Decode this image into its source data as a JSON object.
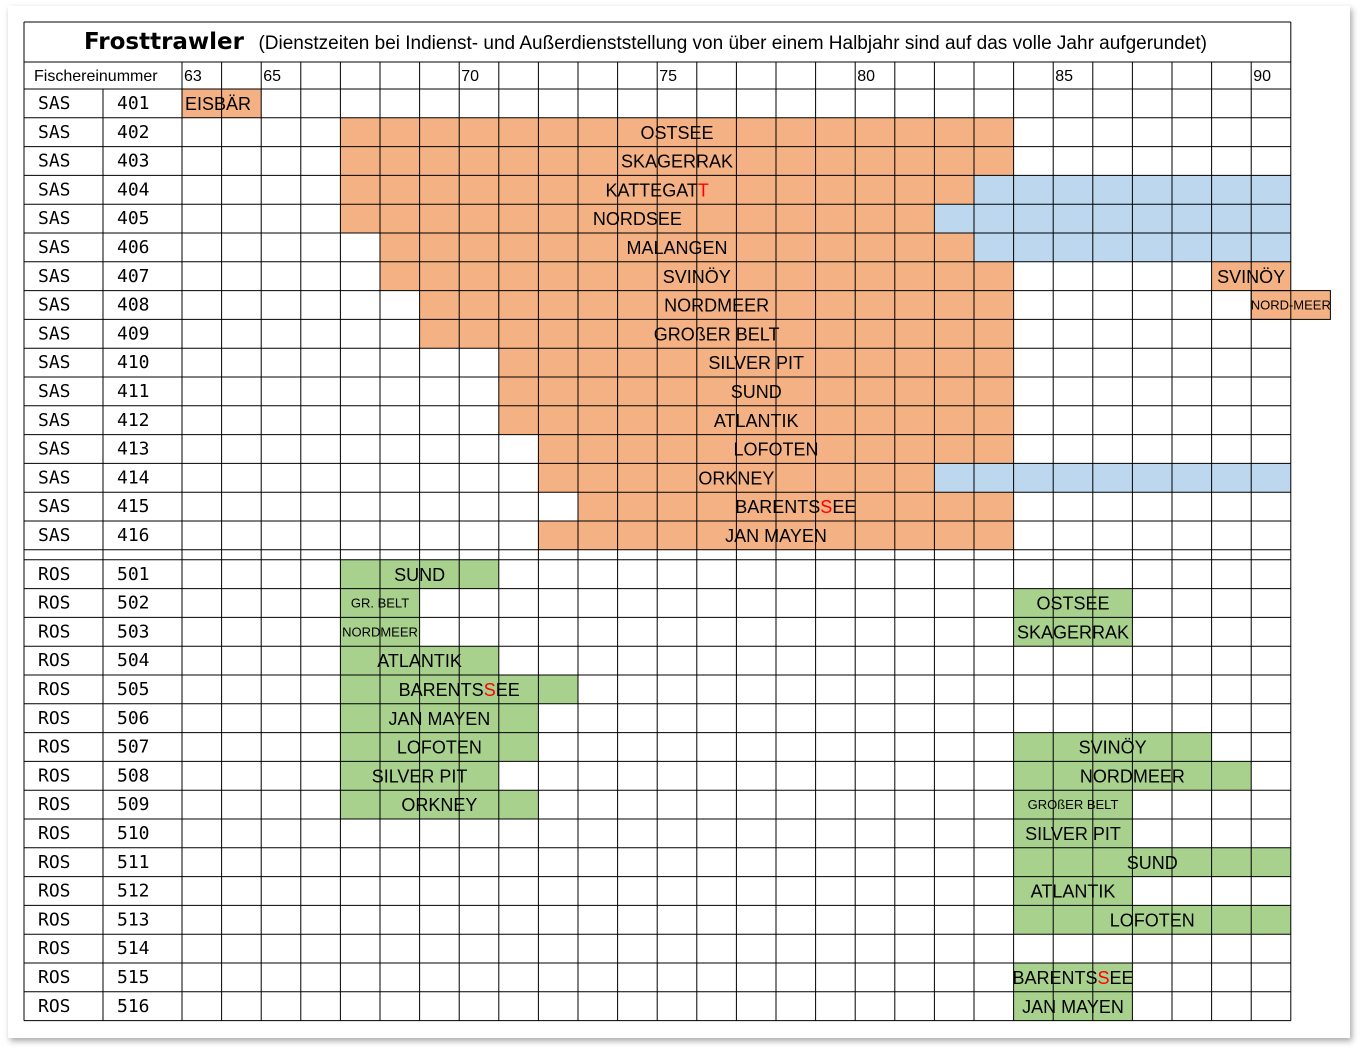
{
  "chart_data": {
    "type": "table",
    "title": "Frosttrawler",
    "subtitle": "(Dienstzeiten bei Indienst- und Außerdienststellung von über einem Halbjahr sind auf das volle Jahr aufgerundet)",
    "column_header": "Fischereinummer",
    "year_range": [
      63,
      90
    ],
    "year_labels": [
      63,
      65,
      70,
      75,
      80,
      85,
      90
    ],
    "colors": {
      "sas_service": "#F4B183",
      "ros_service": "#A9D18E",
      "blue_period": "#BDD7EE",
      "highlight_letter": "#FF0000",
      "grid": "#000000"
    },
    "groups": [
      {
        "prefix": "SAS",
        "rows": [
          {
            "number": "401",
            "bars": [
              {
                "name": "EISBÄR",
                "start": 63,
                "end": 65,
                "kind": "service",
                "align": "left"
              }
            ]
          },
          {
            "number": "402",
            "bars": [
              {
                "name": "OSTSEE",
                "start": 67,
                "end": 84,
                "kind": "service"
              }
            ]
          },
          {
            "number": "403",
            "bars": [
              {
                "name": "SKAGERRAK",
                "start": 67,
                "end": 84,
                "kind": "service"
              }
            ]
          },
          {
            "number": "404",
            "bars": [
              {
                "name": "KATTEGATT",
                "start": 67,
                "end": 83,
                "kind": "service",
                "red_index": 8
              },
              {
                "start": 83,
                "end": 91,
                "kind": "blue"
              }
            ]
          },
          {
            "number": "405",
            "bars": [
              {
                "name": "NORDSEE",
                "start": 67,
                "end": 82,
                "kind": "service"
              },
              {
                "start": 82,
                "end": 91,
                "kind": "blue"
              }
            ]
          },
          {
            "number": "406",
            "bars": [
              {
                "name": "MALANGEN",
                "start": 68,
                "end": 83,
                "kind": "service"
              },
              {
                "start": 83,
                "end": 91,
                "kind": "blue"
              }
            ]
          },
          {
            "number": "407",
            "bars": [
              {
                "name": "SVINÖY",
                "start": 68,
                "end": 84,
                "kind": "service"
              },
              {
                "name": "SVINÖY",
                "start": 89,
                "end": 91,
                "kind": "service"
              }
            ]
          },
          {
            "number": "408",
            "bars": [
              {
                "name": "NORDMEER",
                "start": 69,
                "end": 84,
                "kind": "service"
              },
              {
                "name": "NORD-MEER",
                "start": 90,
                "end": 92,
                "kind": "service",
                "small": true
              }
            ]
          },
          {
            "number": "409",
            "bars": [
              {
                "name": "GROßER BELT",
                "start": 69,
                "end": 84,
                "kind": "service"
              }
            ]
          },
          {
            "number": "410",
            "bars": [
              {
                "name": "SILVER PIT",
                "start": 71,
                "end": 84,
                "kind": "service"
              }
            ]
          },
          {
            "number": "411",
            "bars": [
              {
                "name": "SUND",
                "start": 71,
                "end": 84,
                "kind": "service"
              }
            ]
          },
          {
            "number": "412",
            "bars": [
              {
                "name": "ATLANTIK",
                "start": 71,
                "end": 84,
                "kind": "service"
              }
            ]
          },
          {
            "number": "413",
            "bars": [
              {
                "name": "LOFOTEN",
                "start": 72,
                "end": 84,
                "kind": "service"
              }
            ]
          },
          {
            "number": "414",
            "bars": [
              {
                "name": "ORKNEY",
                "start": 72,
                "end": 82,
                "kind": "service"
              },
              {
                "start": 82,
                "end": 91,
                "kind": "blue"
              }
            ]
          },
          {
            "number": "415",
            "bars": [
              {
                "name": "BARENTSSEE",
                "start": 73,
                "end": 84,
                "kind": "service",
                "red_index": 7
              }
            ]
          },
          {
            "number": "416",
            "bars": [
              {
                "name": "JAN MAYEN",
                "start": 72,
                "end": 84,
                "kind": "service"
              }
            ]
          }
        ]
      },
      {
        "prefix": "ROS",
        "rows": [
          {
            "number": "501",
            "bars": [
              {
                "name": "SUND",
                "start": 67,
                "end": 71,
                "kind": "service"
              }
            ]
          },
          {
            "number": "502",
            "bars": [
              {
                "name": "GR. BELT",
                "start": 67,
                "end": 69,
                "kind": "service",
                "small": true
              },
              {
                "name": "OSTSEE",
                "start": 84,
                "end": 87,
                "kind": "service"
              }
            ]
          },
          {
            "number": "503",
            "bars": [
              {
                "name": "NORDMEER",
                "start": 67,
                "end": 69,
                "kind": "service",
                "small": true
              },
              {
                "name": "SKAGERRAK",
                "start": 84,
                "end": 87,
                "kind": "service"
              }
            ]
          },
          {
            "number": "504",
            "bars": [
              {
                "name": "ATLANTIK",
                "start": 67,
                "end": 71,
                "kind": "service"
              }
            ]
          },
          {
            "number": "505",
            "bars": [
              {
                "name": "BARENTSSEE",
                "start": 67,
                "end": 73,
                "kind": "service",
                "red_index": 7
              }
            ]
          },
          {
            "number": "506",
            "bars": [
              {
                "name": "JAN MAYEN",
                "start": 67,
                "end": 72,
                "kind": "service"
              }
            ]
          },
          {
            "number": "507",
            "bars": [
              {
                "name": "LOFOTEN",
                "start": 67,
                "end": 72,
                "kind": "service"
              },
              {
                "name": "SVINÖY",
                "start": 84,
                "end": 89,
                "kind": "service"
              }
            ]
          },
          {
            "number": "508",
            "bars": [
              {
                "name": "SILVER PIT",
                "start": 67,
                "end": 71,
                "kind": "service"
              },
              {
                "name": "NORDMEER",
                "start": 84,
                "end": 90,
                "kind": "service"
              }
            ]
          },
          {
            "number": "509",
            "bars": [
              {
                "name": "ORKNEY",
                "start": 67,
                "end": 72,
                "kind": "service"
              },
              {
                "name": "GROßER BELT",
                "start": 84,
                "end": 87,
                "kind": "service",
                "small": true
              }
            ]
          },
          {
            "number": "510",
            "bars": [
              {
                "name": "SILVER PIT",
                "start": 84,
                "end": 87,
                "kind": "service"
              }
            ]
          },
          {
            "number": "511",
            "bars": [
              {
                "name": "SUND",
                "start": 84,
                "end": 91,
                "kind": "service"
              }
            ]
          },
          {
            "number": "512",
            "bars": [
              {
                "name": "ATLANTIK",
                "start": 84,
                "end": 87,
                "kind": "service"
              }
            ]
          },
          {
            "number": "513",
            "bars": [
              {
                "name": "LOFOTEN",
                "start": 84,
                "end": 91,
                "kind": "service"
              }
            ]
          },
          {
            "number": "514",
            "bars": []
          },
          {
            "number": "515",
            "bars": [
              {
                "name": "BARENTSSEE",
                "start": 84,
                "end": 87,
                "kind": "service",
                "red_index": 7
              }
            ]
          },
          {
            "number": "516",
            "bars": [
              {
                "name": "JAN MAYEN",
                "start": 84,
                "end": 87,
                "kind": "service"
              }
            ]
          }
        ]
      }
    ]
  }
}
